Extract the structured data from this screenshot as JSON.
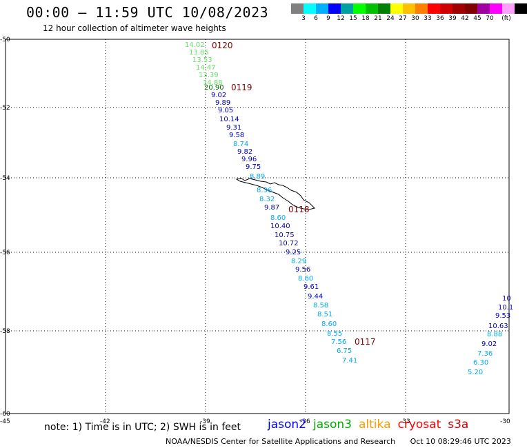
{
  "header": {
    "title": "00:00 – 11:59 UTC 10/08/2023",
    "subtitle": "12 hour collection of altimeter wave heights"
  },
  "colorbar": {
    "colors": [
      "#808080",
      "#00ffff",
      "#00b0ff",
      "#0000ff",
      "#00a0a0",
      "#00ff00",
      "#00c000",
      "#008000",
      "#ffff00",
      "#ffc000",
      "#ff8000",
      "#ff0000",
      "#d00000",
      "#a00000",
      "#800000",
      "#a000a0",
      "#ff00ff",
      "#ffa0ff",
      "#000000"
    ],
    "labels": [
      "3",
      "6",
      "9",
      "12",
      "15",
      "18",
      "21",
      "24",
      "27",
      "30",
      "33",
      "36",
      "39",
      "42",
      "45",
      "70",
      "(ft)"
    ]
  },
  "map": {
    "lon_ticks": [
      "-45",
      "-42",
      "-39",
      "-36",
      "-33",
      "-30"
    ],
    "lat_ticks": [
      "-50",
      "-52",
      "-54",
      "-56",
      "-58",
      "-60"
    ],
    "track_labels": [
      "0120",
      "0119",
      "0118",
      "0117"
    ],
    "track_color": "#800000"
  },
  "observations": [
    {
      "v": "14.02",
      "c": "#66dd66"
    },
    {
      "v": "13.85",
      "c": "#66dd66"
    },
    {
      "v": "13.53",
      "c": "#66dd66"
    },
    {
      "v": "14.47",
      "c": "#66dd66"
    },
    {
      "v": "13.39",
      "c": "#66dd66"
    },
    {
      "v": "14.88",
      "c": "#66dd66"
    },
    {
      "v": "20.90",
      "c": "#006600"
    },
    {
      "v": "9.02",
      "c": "#0000bb"
    },
    {
      "v": "9.89",
      "c": "#0000bb"
    },
    {
      "v": "9.05",
      "c": "#0000bb"
    },
    {
      "v": "10.14",
      "c": "#0000bb"
    },
    {
      "v": "9.31",
      "c": "#0000bb"
    },
    {
      "v": "9.58",
      "c": "#0000bb"
    },
    {
      "v": "8.74",
      "c": "#00aaee"
    },
    {
      "v": "9.82",
      "c": "#0000bb"
    },
    {
      "v": "9.96",
      "c": "#0000bb"
    },
    {
      "v": "9.75",
      "c": "#0000bb"
    },
    {
      "v": "8.89",
      "c": "#00aaee"
    },
    {
      "v": "8.36",
      "c": "#00aaee"
    },
    {
      "v": "8.32",
      "c": "#00aaee"
    },
    {
      "v": "9.87",
      "c": "#0000bb"
    },
    {
      "v": "8.60",
      "c": "#00aaee"
    },
    {
      "v": "10.40",
      "c": "#0000bb"
    },
    {
      "v": "10.75",
      "c": "#0000bb"
    },
    {
      "v": "10.72",
      "c": "#0000bb"
    },
    {
      "v": "9.25",
      "c": "#0000bb"
    },
    {
      "v": "8.29",
      "c": "#00aaee"
    },
    {
      "v": "9.56",
      "c": "#0000bb"
    },
    {
      "v": "8.60",
      "c": "#00aaee"
    },
    {
      "v": "9.61",
      "c": "#0000bb"
    },
    {
      "v": "9.44",
      "c": "#0000bb"
    },
    {
      "v": "8.58",
      "c": "#00aaee"
    },
    {
      "v": "8.51",
      "c": "#00aaee"
    },
    {
      "v": "8.60",
      "c": "#00aaee"
    },
    {
      "v": "8.55",
      "c": "#00aaee"
    },
    {
      "v": "7.56",
      "c": "#00aaee"
    },
    {
      "v": "6.75",
      "c": "#00aaee"
    },
    {
      "v": "7.41",
      "c": "#00aaee"
    },
    {
      "v": "10",
      "c": "#0000bb"
    },
    {
      "v": "10.1",
      "c": "#0000bb"
    },
    {
      "v": "9.53",
      "c": "#0000bb"
    },
    {
      "v": "10.63",
      "c": "#0000bb"
    },
    {
      "v": "8.88",
      "c": "#00aaee"
    },
    {
      "v": "9.02",
      "c": "#0000bb"
    },
    {
      "v": "7.36",
      "c": "#00aaee"
    },
    {
      "v": "6.30",
      "c": "#00aaee"
    },
    {
      "v": "5.20",
      "c": "#00aaee"
    }
  ],
  "note": "note: 1) Time is in UTC; 2) SWH is in feet",
  "satellites": [
    {
      "name": "jason2",
      "color": "#0000ff"
    },
    {
      "name": "jason3",
      "color": "#00aa00"
    },
    {
      "name": "altika",
      "color": "#ff9900"
    },
    {
      "name": "cryosat",
      "color": "#ff0000"
    },
    {
      "name": "s3a",
      "color": "#cc0000"
    }
  ],
  "footer": {
    "agency": "NOAA/NESDIS Center for Satellite Applications and Research",
    "timestamp": "Oct 10 08:29:46 UTC 2023"
  }
}
